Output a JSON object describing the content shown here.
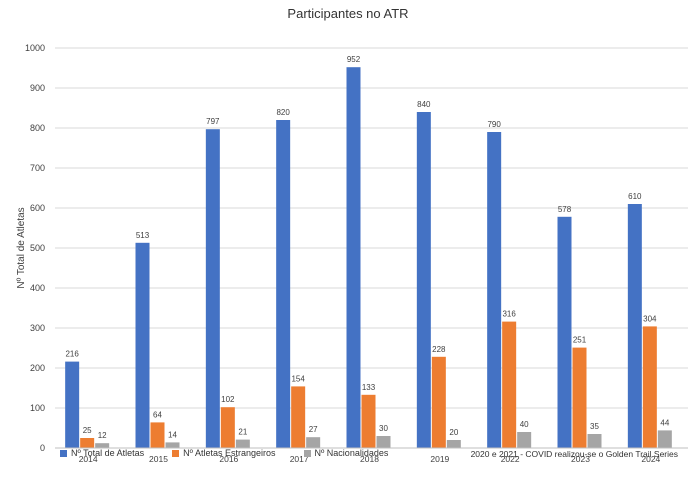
{
  "chart_data": {
    "type": "bar",
    "title": "Participantes no ATR",
    "ylabel": "Nº Total de Atletas",
    "xlabel": "",
    "ylim": [
      0,
      1000
    ],
    "yticks": [
      0,
      100,
      200,
      300,
      400,
      500,
      600,
      700,
      800,
      900,
      1000
    ],
    "grid": true,
    "legend_position": "bottom",
    "categories": [
      "2014",
      "2015",
      "2016",
      "2017",
      "2018",
      "2019",
      "2022",
      "2023",
      "2024"
    ],
    "series": [
      {
        "name": "Nº Total de Atletas",
        "color": "#4472C4",
        "values": [
          216,
          513,
          797,
          820,
          952,
          840,
          790,
          578,
          610
        ]
      },
      {
        "name": "Nº Atletas  Estrangeiros",
        "color": "#ED7D31",
        "values": [
          25,
          64,
          102,
          154,
          133,
          228,
          316,
          251,
          304
        ]
      },
      {
        "name": "Nº Nacionalidades",
        "color": "#A5A5A5",
        "values": [
          12,
          14,
          21,
          27,
          30,
          20,
          40,
          35,
          44
        ]
      }
    ],
    "note": "2020 e 2021 - COVID realizou-se o Golden Trail Series"
  }
}
